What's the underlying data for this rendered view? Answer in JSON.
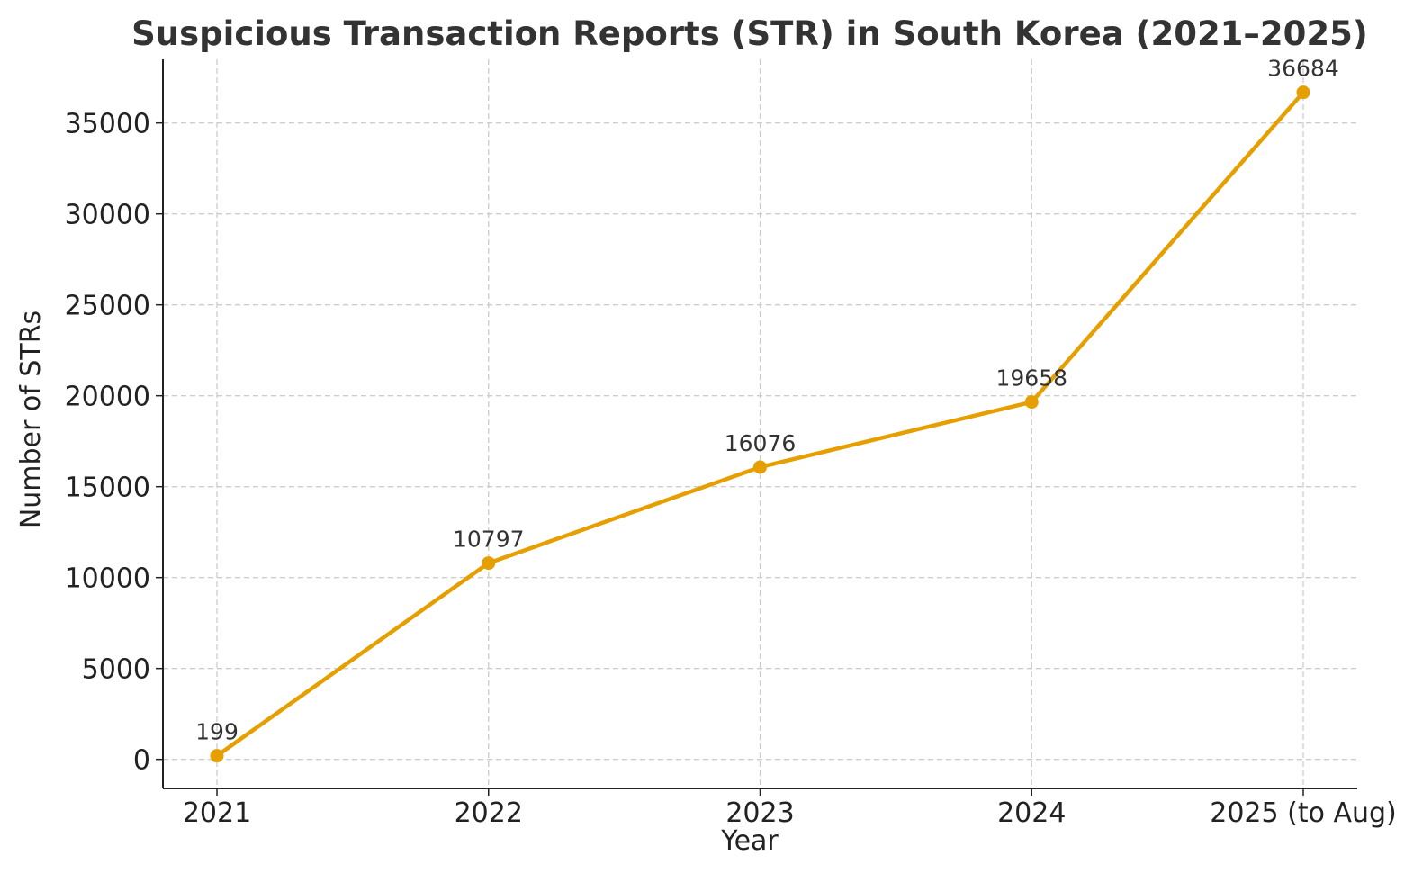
{
  "chart_data": {
    "type": "line",
    "title": "Suspicious Transaction Reports (STR) in South Korea (2021–2025)",
    "xlabel": "Year",
    "ylabel": "Number of STRs",
    "categories": [
      "2021",
      "2022",
      "2023",
      "2024",
      "2025 (to Aug)"
    ],
    "series": [
      {
        "values": [
          199,
          10797,
          16076,
          19658,
          36684
        ],
        "color": "#E69F00"
      }
    ],
    "data_labels": [
      "199",
      "10797",
      "16076",
      "19658",
      "36684"
    ],
    "ylim": [
      -1600,
      38500
    ],
    "yticks": [
      0,
      5000,
      10000,
      15000,
      20000,
      25000,
      30000,
      35000
    ],
    "ytick_labels": [
      "0",
      "5000",
      "10000",
      "15000",
      "20000",
      "25000",
      "30000",
      "35000"
    ],
    "grid": true,
    "legend": "none"
  }
}
